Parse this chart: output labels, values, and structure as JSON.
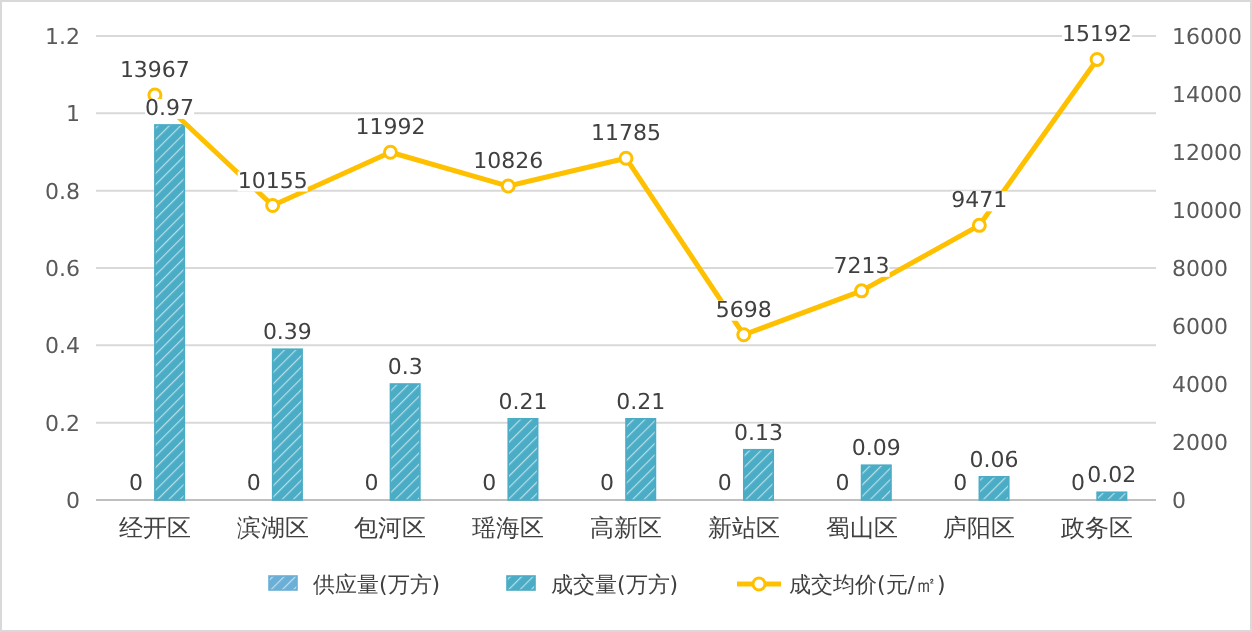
{
  "chart_data": {
    "type": "bar",
    "categories": [
      "经开区",
      "滨湖区",
      "包河区",
      "瑶海区",
      "高新区",
      "新站区",
      "蜀山区",
      "庐阳区",
      "政务区"
    ],
    "series": [
      {
        "name": "供应量(万方)",
        "type": "bar",
        "color": "#6baed6",
        "values": [
          0,
          0,
          0,
          0,
          0,
          0,
          0,
          0,
          0
        ]
      },
      {
        "name": "成交量(万方)",
        "type": "bar",
        "color": "#4bacc6",
        "values": [
          0.97,
          0.39,
          0.3,
          0.21,
          0.21,
          0.13,
          0.09,
          0.06,
          0.02
        ]
      },
      {
        "name": "成交均价(元/㎡)",
        "type": "line",
        "axis": "y2",
        "color": "#ffc000",
        "marker": "circle",
        "values": [
          13967,
          10155,
          11992,
          10826,
          11785,
          5698,
          7213,
          9471,
          15192
        ]
      }
    ],
    "ylim": [
      0,
      1.2
    ],
    "yticks": [
      0,
      0.2,
      0.4,
      0.6,
      0.8,
      1,
      1.2
    ],
    "y2lim": [
      0,
      16000
    ],
    "y2ticks": [
      0,
      2000,
      4000,
      6000,
      8000,
      10000,
      12000,
      14000,
      16000
    ],
    "grid": "y",
    "legend": "bottom",
    "data_labels": true
  }
}
